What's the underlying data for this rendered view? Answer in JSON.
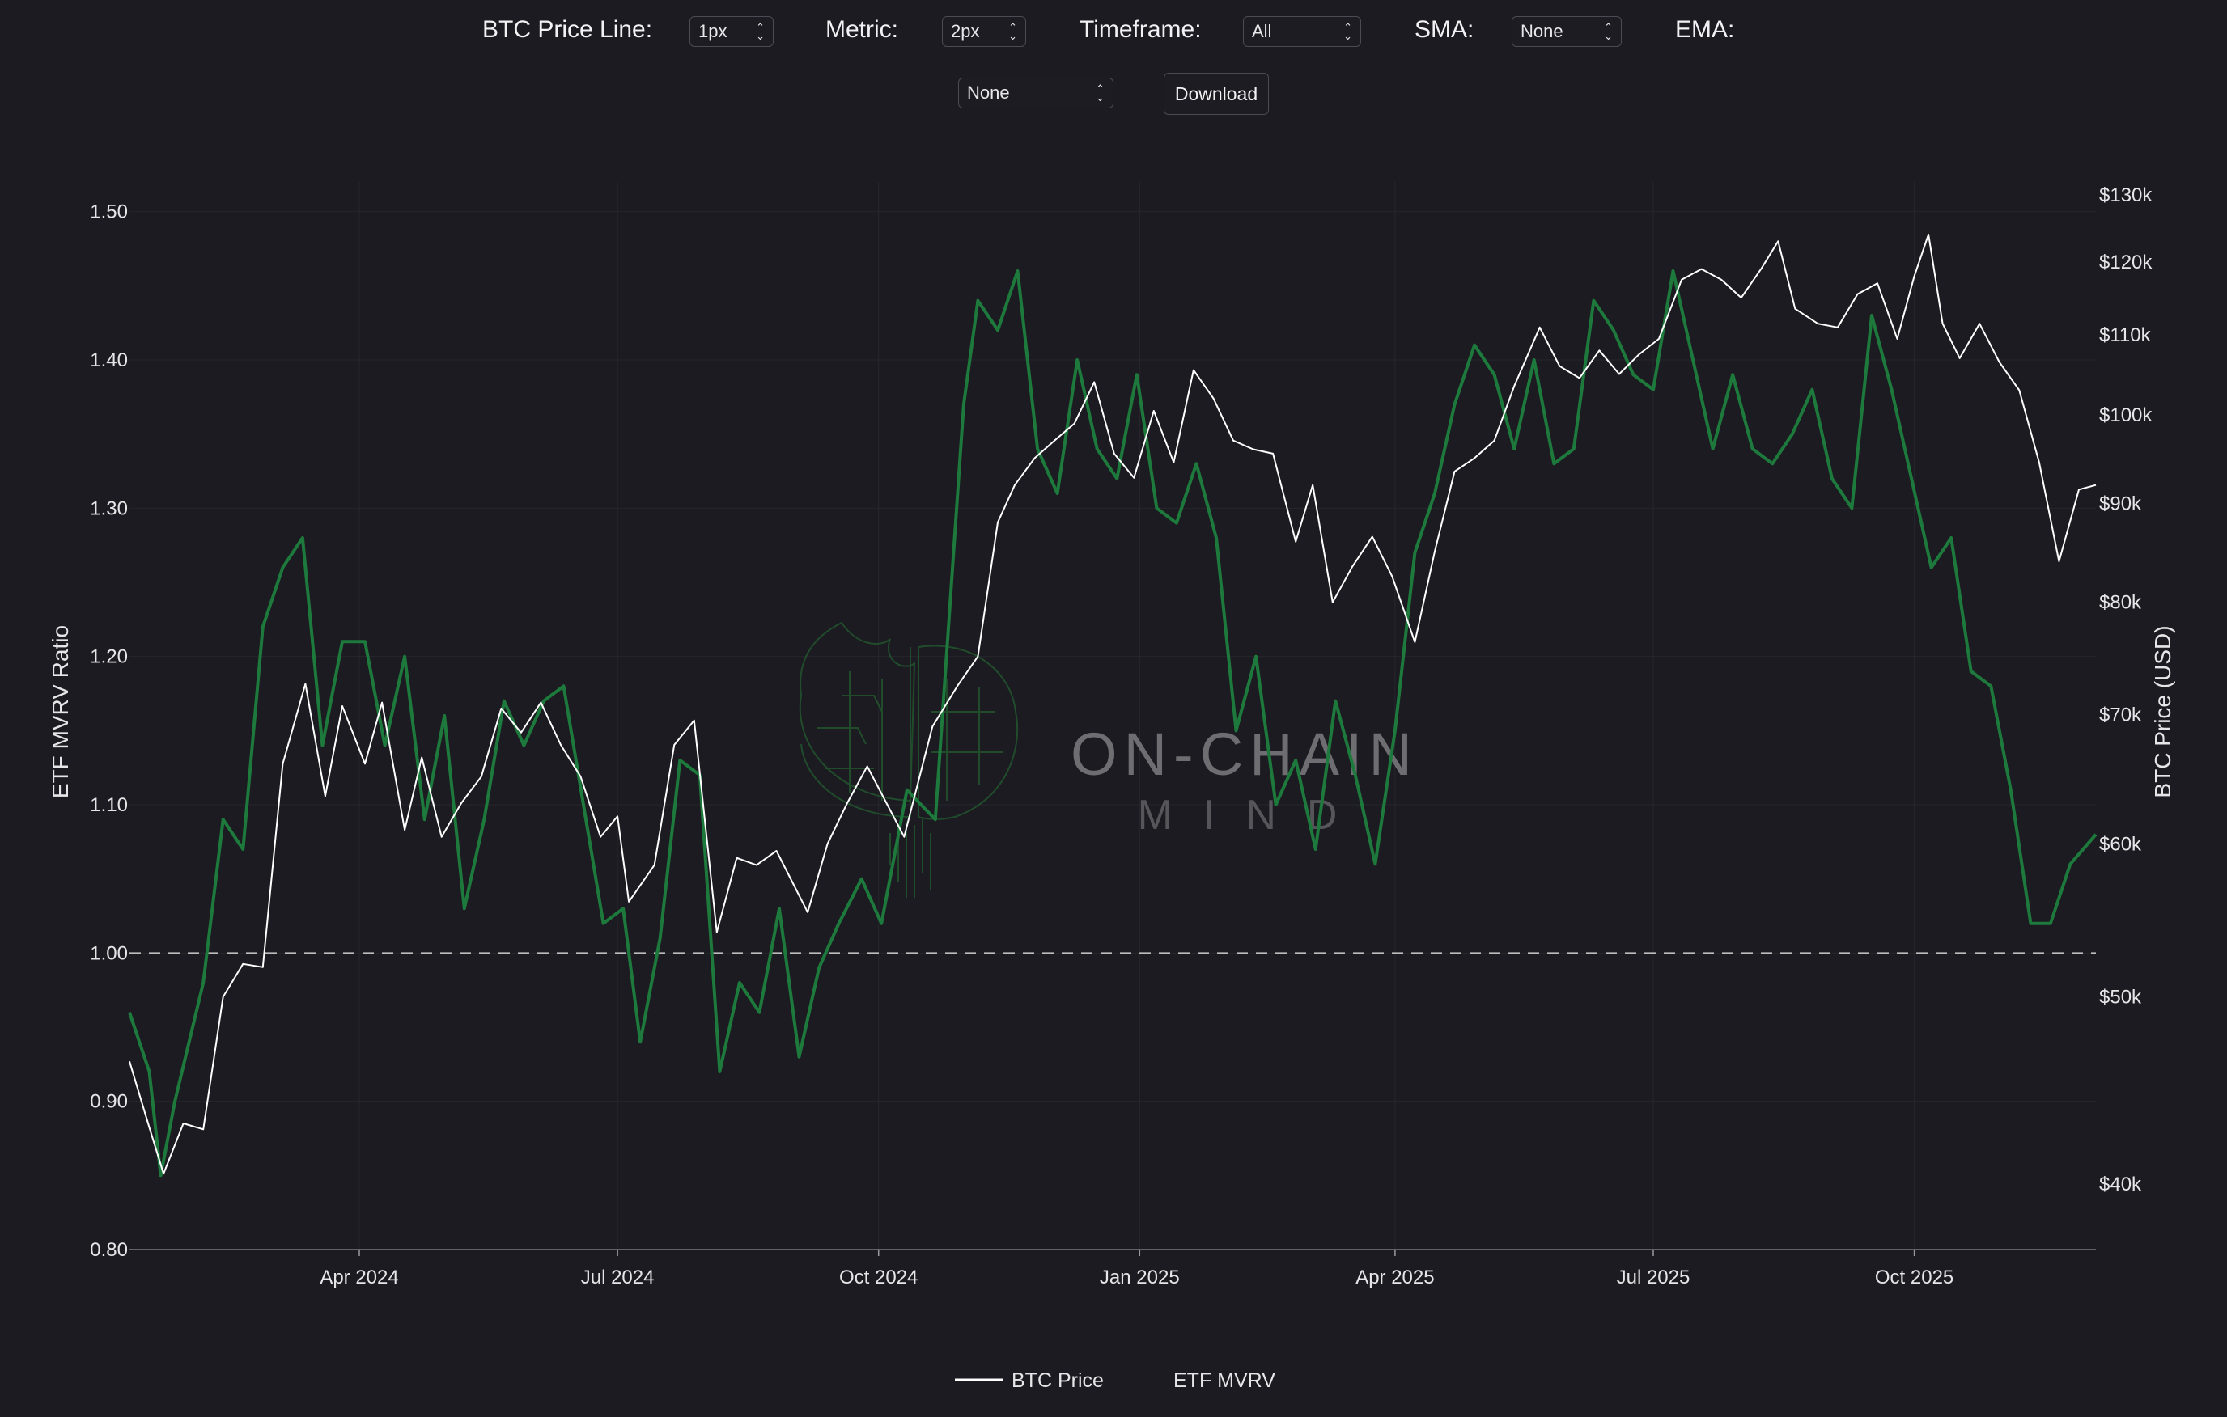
{
  "controls": {
    "btc_price_line": {
      "label": "BTC Price Line:",
      "value": "1px"
    },
    "metric": {
      "label": "Metric:",
      "value": "2px"
    },
    "timeframe": {
      "label": "Timeframe:",
      "value": "All"
    },
    "sma": {
      "label": "SMA:",
      "value": "None"
    },
    "ema": {
      "label": "EMA:",
      "value": "None"
    },
    "download_label": "Download"
  },
  "watermark": {
    "title": "ON-CHAIN",
    "subtitle": "MIND"
  },
  "colors": {
    "btc": "#ffffff",
    "mvrv": "#1e7a3c",
    "background": "#1b1b21",
    "reference": "#bdbdbd"
  },
  "chart_data": {
    "type": "line",
    "xlabel": "",
    "ylabel_left": "ETF MVRV Ratio",
    "ylabel_right": "BTC Price (USD)",
    "x_range": [
      "2024-01-11",
      "2025-12-04"
    ],
    "x_ticks": [
      {
        "date": "2024-04-01",
        "label": "Apr 2024"
      },
      {
        "date": "2024-07-01",
        "label": "Jul 2024"
      },
      {
        "date": "2024-10-01",
        "label": "Oct 2024"
      },
      {
        "date": "2025-01-01",
        "label": "Jan 2025"
      },
      {
        "date": "2025-04-01",
        "label": "Apr 2025"
      },
      {
        "date": "2025-07-01",
        "label": "Jul 2025"
      },
      {
        "date": "2025-10-01",
        "label": "Oct 2025"
      }
    ],
    "y_left": {
      "range": [
        0.8,
        1.52
      ],
      "ticks": [
        0.8,
        0.9,
        1.0,
        1.1,
        1.2,
        1.3,
        1.4,
        1.5
      ],
      "tick_labels": [
        "0.80",
        "0.90",
        "1.00",
        "1.10",
        "1.20",
        "1.30",
        "1.40",
        "1.50"
      ]
    },
    "y_right": {
      "scale": "log",
      "range": [
        37000,
        132000
      ],
      "ticks": [
        40000,
        50000,
        60000,
        70000,
        80000,
        90000,
        100000,
        110000,
        120000,
        130000
      ],
      "tick_labels": [
        "$40k",
        "$50k",
        "$60k",
        "$70k",
        "$80k",
        "$90k",
        "$100k",
        "$110k",
        "$120k",
        "$130k"
      ]
    },
    "reference_line": {
      "axis": "left",
      "value": 1.0,
      "style": "dashed"
    },
    "grid": true,
    "legend_position": "bottom-center",
    "series": [
      {
        "name": "BTC Price",
        "axis": "right",
        "dates": [
          "2024-01-11",
          "2024-01-18",
          "2024-01-23",
          "2024-01-30",
          "2024-02-06",
          "2024-02-13",
          "2024-02-20",
          "2024-02-27",
          "2024-03-05",
          "2024-03-13",
          "2024-03-20",
          "2024-03-26",
          "2024-04-03",
          "2024-04-09",
          "2024-04-17",
          "2024-04-23",
          "2024-04-30",
          "2024-05-07",
          "2024-05-14",
          "2024-05-21",
          "2024-05-28",
          "2024-06-04",
          "2024-06-11",
          "2024-06-18",
          "2024-06-25",
          "2024-07-01",
          "2024-07-05",
          "2024-07-14",
          "2024-07-21",
          "2024-07-28",
          "2024-08-05",
          "2024-08-12",
          "2024-08-19",
          "2024-08-26",
          "2024-09-06",
          "2024-09-13",
          "2024-09-20",
          "2024-09-27",
          "2024-10-10",
          "2024-10-20",
          "2024-10-29",
          "2024-11-05",
          "2024-11-12",
          "2024-11-18",
          "2024-11-25",
          "2024-12-02",
          "2024-12-09",
          "2024-12-16",
          "2024-12-23",
          "2024-12-30",
          "2025-01-06",
          "2025-01-13",
          "2025-01-20",
          "2025-01-27",
          "2025-02-03",
          "2025-02-10",
          "2025-02-17",
          "2025-02-25",
          "2025-03-03",
          "2025-03-10",
          "2025-03-17",
          "2025-03-24",
          "2025-03-31",
          "2025-04-08",
          "2025-04-15",
          "2025-04-22",
          "2025-04-29",
          "2025-05-06",
          "2025-05-13",
          "2025-05-22",
          "2025-05-29",
          "2025-06-05",
          "2025-06-12",
          "2025-06-19",
          "2025-06-26",
          "2025-07-03",
          "2025-07-11",
          "2025-07-18",
          "2025-07-25",
          "2025-08-01",
          "2025-08-08",
          "2025-08-14",
          "2025-08-20",
          "2025-08-28",
          "2025-09-04",
          "2025-09-11",
          "2025-09-18",
          "2025-09-25",
          "2025-10-01",
          "2025-10-06",
          "2025-10-11",
          "2025-10-17",
          "2025-10-24",
          "2025-10-31",
          "2025-11-07",
          "2025-11-14",
          "2025-11-21",
          "2025-11-28",
          "2025-12-04"
        ],
        "values": [
          46300,
          42800,
          40500,
          43000,
          42700,
          50000,
          52000,
          51800,
          66000,
          72600,
          63500,
          70700,
          66000,
          71000,
          61000,
          66500,
          60500,
          63000,
          65000,
          70500,
          68500,
          71000,
          67500,
          65000,
          60500,
          62000,
          56000,
          58500,
          67500,
          69500,
          54000,
          59000,
          58500,
          59500,
          55300,
          60000,
          63000,
          65800,
          60500,
          69000,
          72500,
          75000,
          88000,
          92000,
          95000,
          97000,
          99000,
          104000,
          95500,
          92800,
          100500,
          94500,
          105500,
          102000,
          97000,
          96000,
          95500,
          86000,
          92000,
          80000,
          83500,
          86500,
          82500,
          76300,
          85000,
          93500,
          95000,
          97000,
          103500,
          111000,
          106000,
          104500,
          108000,
          105000,
          107500,
          109500,
          117500,
          119000,
          117500,
          115000,
          119000,
          123000,
          113500,
          111500,
          111000,
          115500,
          117000,
          109500,
          118000,
          124000,
          111500,
          107000,
          111500,
          106500,
          103000,
          94500,
          84000,
          91500,
          92000
        ]
      },
      {
        "name": "ETF MVRV",
        "axis": "left",
        "dates": [
          "2024-01-11",
          "2024-01-18",
          "2024-01-22",
          "2024-01-27",
          "2024-02-06",
          "2024-02-13",
          "2024-02-20",
          "2024-02-27",
          "2024-03-05",
          "2024-03-12",
          "2024-03-19",
          "2024-03-26",
          "2024-04-03",
          "2024-04-10",
          "2024-04-17",
          "2024-04-24",
          "2024-05-01",
          "2024-05-08",
          "2024-05-15",
          "2024-05-22",
          "2024-05-29",
          "2024-06-05",
          "2024-06-12",
          "2024-06-19",
          "2024-06-26",
          "2024-07-03",
          "2024-07-09",
          "2024-07-16",
          "2024-07-23",
          "2024-07-30",
          "2024-08-06",
          "2024-08-13",
          "2024-08-20",
          "2024-08-27",
          "2024-09-03",
          "2024-09-10",
          "2024-09-17",
          "2024-09-25",
          "2024-10-02",
          "2024-10-11",
          "2024-10-21",
          "2024-10-31",
          "2024-11-05",
          "2024-11-12",
          "2024-11-19",
          "2024-11-26",
          "2024-12-03",
          "2024-12-10",
          "2024-12-17",
          "2024-12-24",
          "2024-12-31",
          "2025-01-07",
          "2025-01-14",
          "2025-01-21",
          "2025-01-28",
          "2025-02-04",
          "2025-02-11",
          "2025-02-18",
          "2025-02-25",
          "2025-03-04",
          "2025-03-11",
          "2025-03-18",
          "2025-03-25",
          "2025-04-01",
          "2025-04-08",
          "2025-04-15",
          "2025-04-22",
          "2025-04-29",
          "2025-05-06",
          "2025-05-13",
          "2025-05-20",
          "2025-05-27",
          "2025-06-03",
          "2025-06-10",
          "2025-06-17",
          "2025-06-24",
          "2025-07-01",
          "2025-07-08",
          "2025-07-15",
          "2025-07-22",
          "2025-07-29",
          "2025-08-05",
          "2025-08-12",
          "2025-08-19",
          "2025-08-26",
          "2025-09-02",
          "2025-09-09",
          "2025-09-16",
          "2025-09-23",
          "2025-09-30",
          "2025-10-07",
          "2025-10-14",
          "2025-10-21",
          "2025-10-28",
          "2025-11-04",
          "2025-11-11",
          "2025-11-18",
          "2025-11-25",
          "2025-12-04"
        ],
        "values": [
          0.96,
          0.92,
          0.85,
          0.9,
          0.98,
          1.09,
          1.07,
          1.22,
          1.26,
          1.28,
          1.14,
          1.21,
          1.21,
          1.14,
          1.2,
          1.09,
          1.16,
          1.03,
          1.09,
          1.17,
          1.14,
          1.17,
          1.18,
          1.1,
          1.02,
          1.03,
          0.94,
          1.01,
          1.13,
          1.12,
          0.92,
          0.98,
          0.96,
          1.03,
          0.93,
          0.99,
          1.02,
          1.05,
          1.02,
          1.11,
          1.09,
          1.37,
          1.44,
          1.42,
          1.46,
          1.34,
          1.31,
          1.4,
          1.34,
          1.32,
          1.39,
          1.3,
          1.29,
          1.33,
          1.28,
          1.15,
          1.2,
          1.1,
          1.13,
          1.07,
          1.17,
          1.12,
          1.06,
          1.15,
          1.27,
          1.31,
          1.37,
          1.41,
          1.39,
          1.34,
          1.4,
          1.33,
          1.34,
          1.44,
          1.42,
          1.39,
          1.38,
          1.46,
          1.4,
          1.34,
          1.39,
          1.34,
          1.33,
          1.35,
          1.38,
          1.32,
          1.3,
          1.43,
          1.38,
          1.32,
          1.26,
          1.28,
          1.19,
          1.18,
          1.11,
          1.02,
          1.02,
          1.06,
          1.08
        ]
      }
    ]
  }
}
